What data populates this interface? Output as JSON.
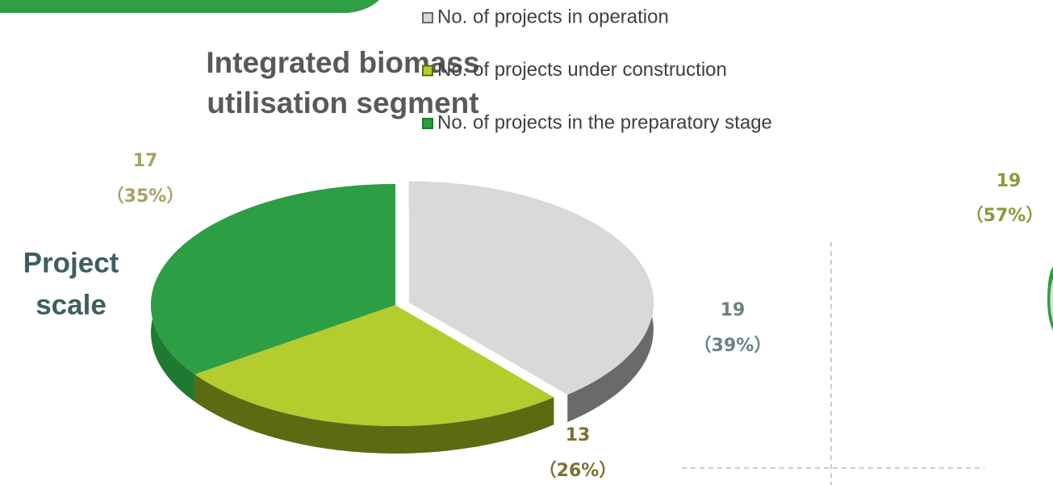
{
  "chart_data": [
    {
      "type": "pie",
      "title": "Integrated biomass utilisation segment",
      "side_label": "Project scale",
      "categories": [
        "No. of projects in operation",
        "No. of projects under construction",
        "No. of projects in the preparatory stage"
      ],
      "colors": [
        "#d9d9d9",
        "#b5cc2e",
        "#2e9e45"
      ],
      "wall_colors": [
        "#6a6a6a",
        "#5c6b12",
        "#1f7a31"
      ],
      "label_colors": [
        "#6b8282",
        "#7d7030",
        "#a9a263"
      ],
      "values": [
        19,
        13,
        17
      ],
      "percents": [
        39,
        26,
        35
      ],
      "percent_labels": [
        "（39%）",
        "（26%）",
        "（35%）"
      ]
    },
    {
      "type": "pie",
      "values": [
        19
      ],
      "percents": [
        57
      ],
      "percent_labels": [
        "（57%）"
      ],
      "colors": [
        "#2e9e45"
      ],
      "label_colors": [
        "#8a9a3a"
      ]
    }
  ]
}
